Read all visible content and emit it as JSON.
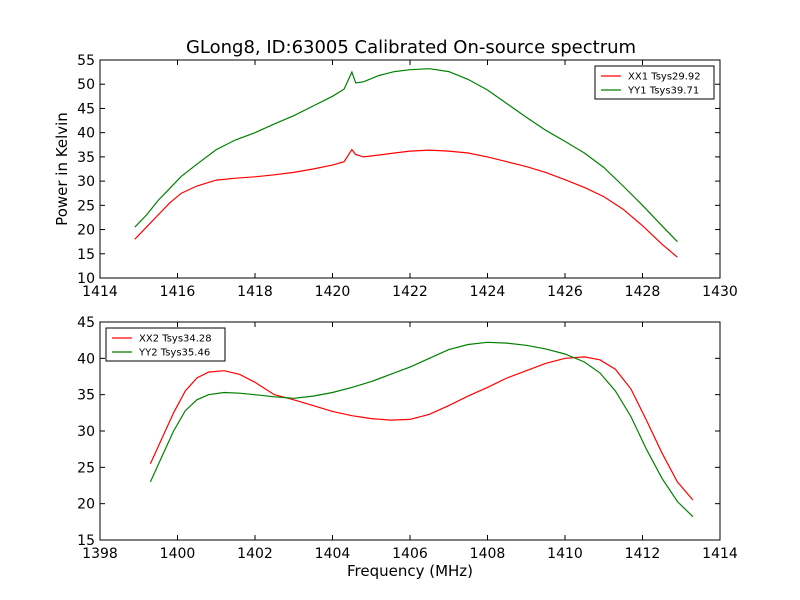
{
  "title": "GLong8, ID:63005 Calibrated On-source spectrum",
  "chart_data": [
    {
      "type": "line",
      "ylabel": "Power in Kelvin",
      "xlabel": "",
      "xlim": [
        1414,
        1430
      ],
      "ylim": [
        10,
        55
      ],
      "xticks": [
        1414,
        1416,
        1418,
        1420,
        1422,
        1424,
        1426,
        1428,
        1430
      ],
      "yticks": [
        10,
        15,
        20,
        25,
        30,
        35,
        40,
        45,
        50,
        55
      ],
      "legend_position": "top-right",
      "series": [
        {
          "name": "XX1 Tsys29.92",
          "color": "#ff0000",
          "x": [
            1414.9,
            1415.2,
            1415.5,
            1415.8,
            1416.1,
            1416.5,
            1417.0,
            1417.5,
            1418.0,
            1418.5,
            1419.0,
            1419.5,
            1420.0,
            1420.3,
            1420.5,
            1420.6,
            1420.8,
            1421.2,
            1421.6,
            1422.0,
            1422.5,
            1423.0,
            1423.5,
            1424.0,
            1424.5,
            1425.0,
            1425.5,
            1426.0,
            1426.5,
            1427.0,
            1427.5,
            1428.0,
            1428.5,
            1428.9
          ],
          "y": [
            18.0,
            20.5,
            23.0,
            25.5,
            27.5,
            29.0,
            30.2,
            30.6,
            30.9,
            31.3,
            31.8,
            32.5,
            33.3,
            34.0,
            36.5,
            35.5,
            35.0,
            35.4,
            35.8,
            36.2,
            36.4,
            36.2,
            35.8,
            35.0,
            34.0,
            33.0,
            31.8,
            30.3,
            28.7,
            26.8,
            24.2,
            20.8,
            17.0,
            14.3
          ]
        },
        {
          "name": "YY1 Tsys39.71",
          "color": "#008000",
          "x": [
            1414.9,
            1415.2,
            1415.5,
            1415.8,
            1416.1,
            1416.5,
            1417.0,
            1417.5,
            1418.0,
            1418.5,
            1419.0,
            1419.5,
            1420.0,
            1420.3,
            1420.5,
            1420.6,
            1420.8,
            1421.2,
            1421.6,
            1422.0,
            1422.5,
            1423.0,
            1423.5,
            1424.0,
            1424.5,
            1425.0,
            1425.5,
            1426.0,
            1426.5,
            1427.0,
            1427.5,
            1428.0,
            1428.5,
            1428.9
          ],
          "y": [
            20.5,
            23.0,
            26.0,
            28.5,
            31.0,
            33.5,
            36.5,
            38.5,
            40.0,
            41.8,
            43.5,
            45.5,
            47.5,
            49.0,
            52.5,
            50.3,
            50.5,
            51.8,
            52.6,
            53.0,
            53.2,
            52.6,
            51.0,
            48.8,
            46.0,
            43.2,
            40.5,
            38.2,
            35.8,
            32.8,
            29.0,
            25.0,
            20.8,
            17.5
          ]
        }
      ]
    },
    {
      "type": "line",
      "ylabel": "",
      "xlabel": "Frequency (MHz)",
      "xlim": [
        1398,
        1414
      ],
      "ylim": [
        15,
        45
      ],
      "xticks": [
        1398,
        1400,
        1402,
        1404,
        1406,
        1408,
        1410,
        1412,
        1414
      ],
      "yticks": [
        15,
        20,
        25,
        30,
        35,
        40,
        45
      ],
      "legend_position": "top-left",
      "series": [
        {
          "name": "XX2 Tsys34.28",
          "color": "#ff0000",
          "x": [
            1399.3,
            1399.6,
            1399.9,
            1400.2,
            1400.5,
            1400.8,
            1401.2,
            1401.6,
            1402.0,
            1402.5,
            1403.0,
            1403.5,
            1404.0,
            1404.5,
            1405.0,
            1405.5,
            1406.0,
            1406.5,
            1407.0,
            1407.5,
            1408.0,
            1408.5,
            1409.0,
            1409.5,
            1410.0,
            1410.5,
            1410.9,
            1411.3,
            1411.7,
            1412.1,
            1412.5,
            1412.9,
            1413.3
          ],
          "y": [
            25.5,
            29.0,
            32.5,
            35.5,
            37.3,
            38.1,
            38.3,
            37.8,
            36.7,
            35.0,
            34.3,
            33.5,
            32.7,
            32.1,
            31.7,
            31.5,
            31.6,
            32.3,
            33.5,
            34.8,
            36.0,
            37.3,
            38.3,
            39.3,
            40.0,
            40.2,
            39.8,
            38.5,
            35.8,
            31.5,
            27.0,
            23.0,
            20.5
          ]
        },
        {
          "name": "YY2 Tsys35.46",
          "color": "#008000",
          "x": [
            1399.3,
            1399.6,
            1399.9,
            1400.2,
            1400.5,
            1400.8,
            1401.2,
            1401.6,
            1402.0,
            1402.5,
            1403.0,
            1403.5,
            1404.0,
            1404.5,
            1405.0,
            1405.5,
            1406.0,
            1406.5,
            1407.0,
            1407.5,
            1408.0,
            1408.5,
            1409.0,
            1409.5,
            1410.0,
            1410.5,
            1410.9,
            1411.3,
            1411.7,
            1412.1,
            1412.5,
            1412.9,
            1413.3
          ],
          "y": [
            23.0,
            26.5,
            30.0,
            32.8,
            34.3,
            35.0,
            35.3,
            35.2,
            35.0,
            34.7,
            34.5,
            34.8,
            35.3,
            36.0,
            36.8,
            37.8,
            38.8,
            40.0,
            41.2,
            41.9,
            42.2,
            42.1,
            41.8,
            41.3,
            40.6,
            39.5,
            38.0,
            35.5,
            32.0,
            27.5,
            23.5,
            20.3,
            18.2
          ]
        }
      ]
    }
  ]
}
